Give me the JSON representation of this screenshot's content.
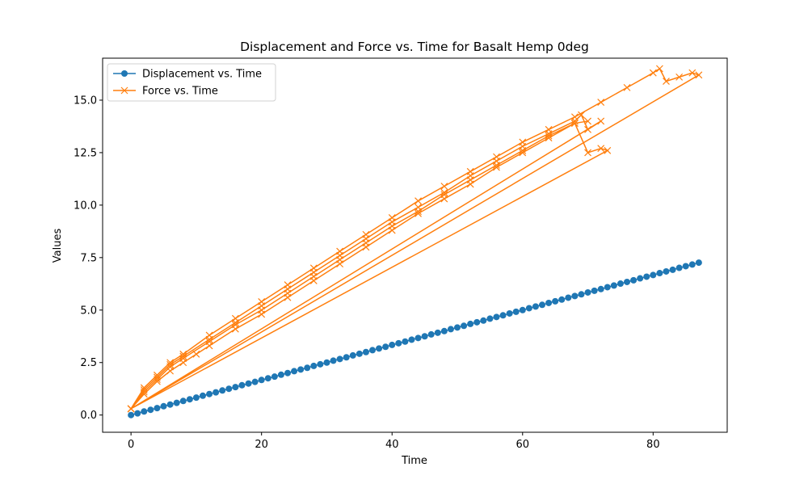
{
  "chart_data": {
    "type": "line",
    "title": "Displacement and Force vs. Time for Basalt Hemp 0deg",
    "x_label": "Time",
    "y_label": "Values",
    "xlim": [
      -4.35,
      91.35
    ],
    "xticks": [
      0,
      20,
      40,
      60,
      80
    ],
    "ylim": [
      -0.82,
      17.0
    ],
    "yticks": [
      {
        "value": 0,
        "label": "0.0"
      },
      {
        "value": 2.5,
        "label": "2.5"
      },
      {
        "value": 5,
        "label": "5.0"
      },
      {
        "value": 7.5,
        "label": "7.5"
      },
      {
        "value": 10,
        "label": "10.0"
      },
      {
        "value": 12.5,
        "label": "12.5"
      },
      {
        "value": 15,
        "label": "15.0"
      }
    ],
    "legend": "upper left",
    "series": [
      {
        "name": "Displacement vs. Time",
        "color": "#1f77b4",
        "marker": "o",
        "x": [
          0,
          1,
          2,
          3,
          4,
          5,
          6,
          7,
          8,
          9,
          10,
          11,
          12,
          13,
          14,
          15,
          16,
          17,
          18,
          19,
          20,
          21,
          22,
          23,
          24,
          25,
          26,
          27,
          28,
          29,
          30,
          31,
          32,
          33,
          34,
          35,
          36,
          37,
          38,
          39,
          40,
          41,
          42,
          43,
          44,
          45,
          46,
          47,
          48,
          49,
          50,
          51,
          52,
          53,
          54,
          55,
          56,
          57,
          58,
          59,
          60,
          61,
          62,
          63,
          64,
          65,
          66,
          67,
          68,
          69,
          70,
          71,
          72,
          73,
          74,
          75,
          76,
          77,
          78,
          79,
          80,
          81,
          82,
          83,
          84,
          85,
          86,
          87
        ],
        "values": [
          0,
          0.08,
          0.17,
          0.25,
          0.33,
          0.42,
          0.5,
          0.58,
          0.67,
          0.75,
          0.83,
          0.92,
          1.0,
          1.08,
          1.17,
          1.25,
          1.33,
          1.42,
          1.5,
          1.58,
          1.67,
          1.75,
          1.83,
          1.92,
          2.0,
          2.09,
          2.17,
          2.25,
          2.34,
          2.42,
          2.5,
          2.59,
          2.67,
          2.75,
          2.84,
          2.92,
          3.0,
          3.09,
          3.17,
          3.25,
          3.34,
          3.42,
          3.5,
          3.59,
          3.67,
          3.75,
          3.84,
          3.92,
          4.0,
          4.09,
          4.17,
          4.25,
          4.34,
          4.42,
          4.5,
          4.59,
          4.67,
          4.75,
          4.84,
          4.92,
          5.0,
          5.09,
          5.17,
          5.25,
          5.34,
          5.42,
          5.5,
          5.59,
          5.67,
          5.75,
          5.84,
          5.92,
          6.0,
          6.09,
          6.17,
          6.26,
          6.34,
          6.42,
          6.51,
          6.59,
          6.67,
          6.76,
          6.84,
          6.92,
          7.01,
          7.09,
          7.17,
          7.26
        ]
      },
      {
        "name": "Force vs. Time",
        "color": "#ff7f0e",
        "marker": "x",
        "x": [
          0,
          2,
          4,
          6,
          8,
          10,
          12,
          16,
          20,
          24,
          28,
          32,
          36,
          40,
          44,
          48,
          52,
          56,
          60,
          64,
          68,
          70,
          72,
          73,
          0,
          2,
          4,
          6,
          8,
          12,
          16,
          20,
          24,
          28,
          32,
          36,
          40,
          44,
          48,
          52,
          56,
          60,
          64,
          68,
          69,
          70,
          72,
          0,
          2,
          4,
          6,
          8,
          12,
          16,
          20,
          24,
          28,
          32,
          36,
          40,
          44,
          48,
          52,
          56,
          60,
          64,
          68,
          72,
          76,
          80,
          81,
          82,
          84,
          86,
          87,
          0,
          2,
          4,
          6,
          8,
          12,
          16,
          20,
          24,
          28,
          32,
          36,
          40,
          44,
          48,
          52,
          56,
          60,
          64,
          68,
          70
        ],
        "values": [
          0.3,
          1.0,
          1.6,
          2.1,
          2.5,
          2.9,
          3.3,
          4.1,
          4.8,
          5.6,
          6.4,
          7.2,
          8.0,
          8.8,
          9.6,
          10.3,
          11.0,
          11.8,
          12.5,
          13.2,
          13.9,
          12.5,
          12.7,
          12.6,
          0.3,
          1.2,
          1.8,
          2.4,
          2.8,
          3.6,
          4.4,
          5.2,
          6.0,
          6.8,
          7.6,
          8.4,
          9.2,
          9.9,
          10.6,
          11.4,
          12.1,
          12.8,
          13.4,
          14.0,
          14.3,
          13.6,
          14.0,
          0.3,
          1.3,
          1.9,
          2.5,
          2.9,
          3.8,
          4.6,
          5.4,
          6.2,
          7.0,
          7.8,
          8.6,
          9.4,
          10.2,
          10.9,
          11.6,
          12.3,
          13.0,
          13.6,
          14.2,
          14.9,
          15.6,
          16.3,
          16.5,
          15.9,
          16.1,
          16.3,
          16.2,
          0.3,
          1.1,
          1.7,
          2.3,
          2.7,
          3.5,
          4.3,
          5.0,
          5.8,
          6.6,
          7.4,
          8.2,
          9.0,
          9.7,
          10.5,
          11.2,
          11.9,
          12.6,
          13.3,
          13.9,
          14.0
        ]
      }
    ]
  }
}
